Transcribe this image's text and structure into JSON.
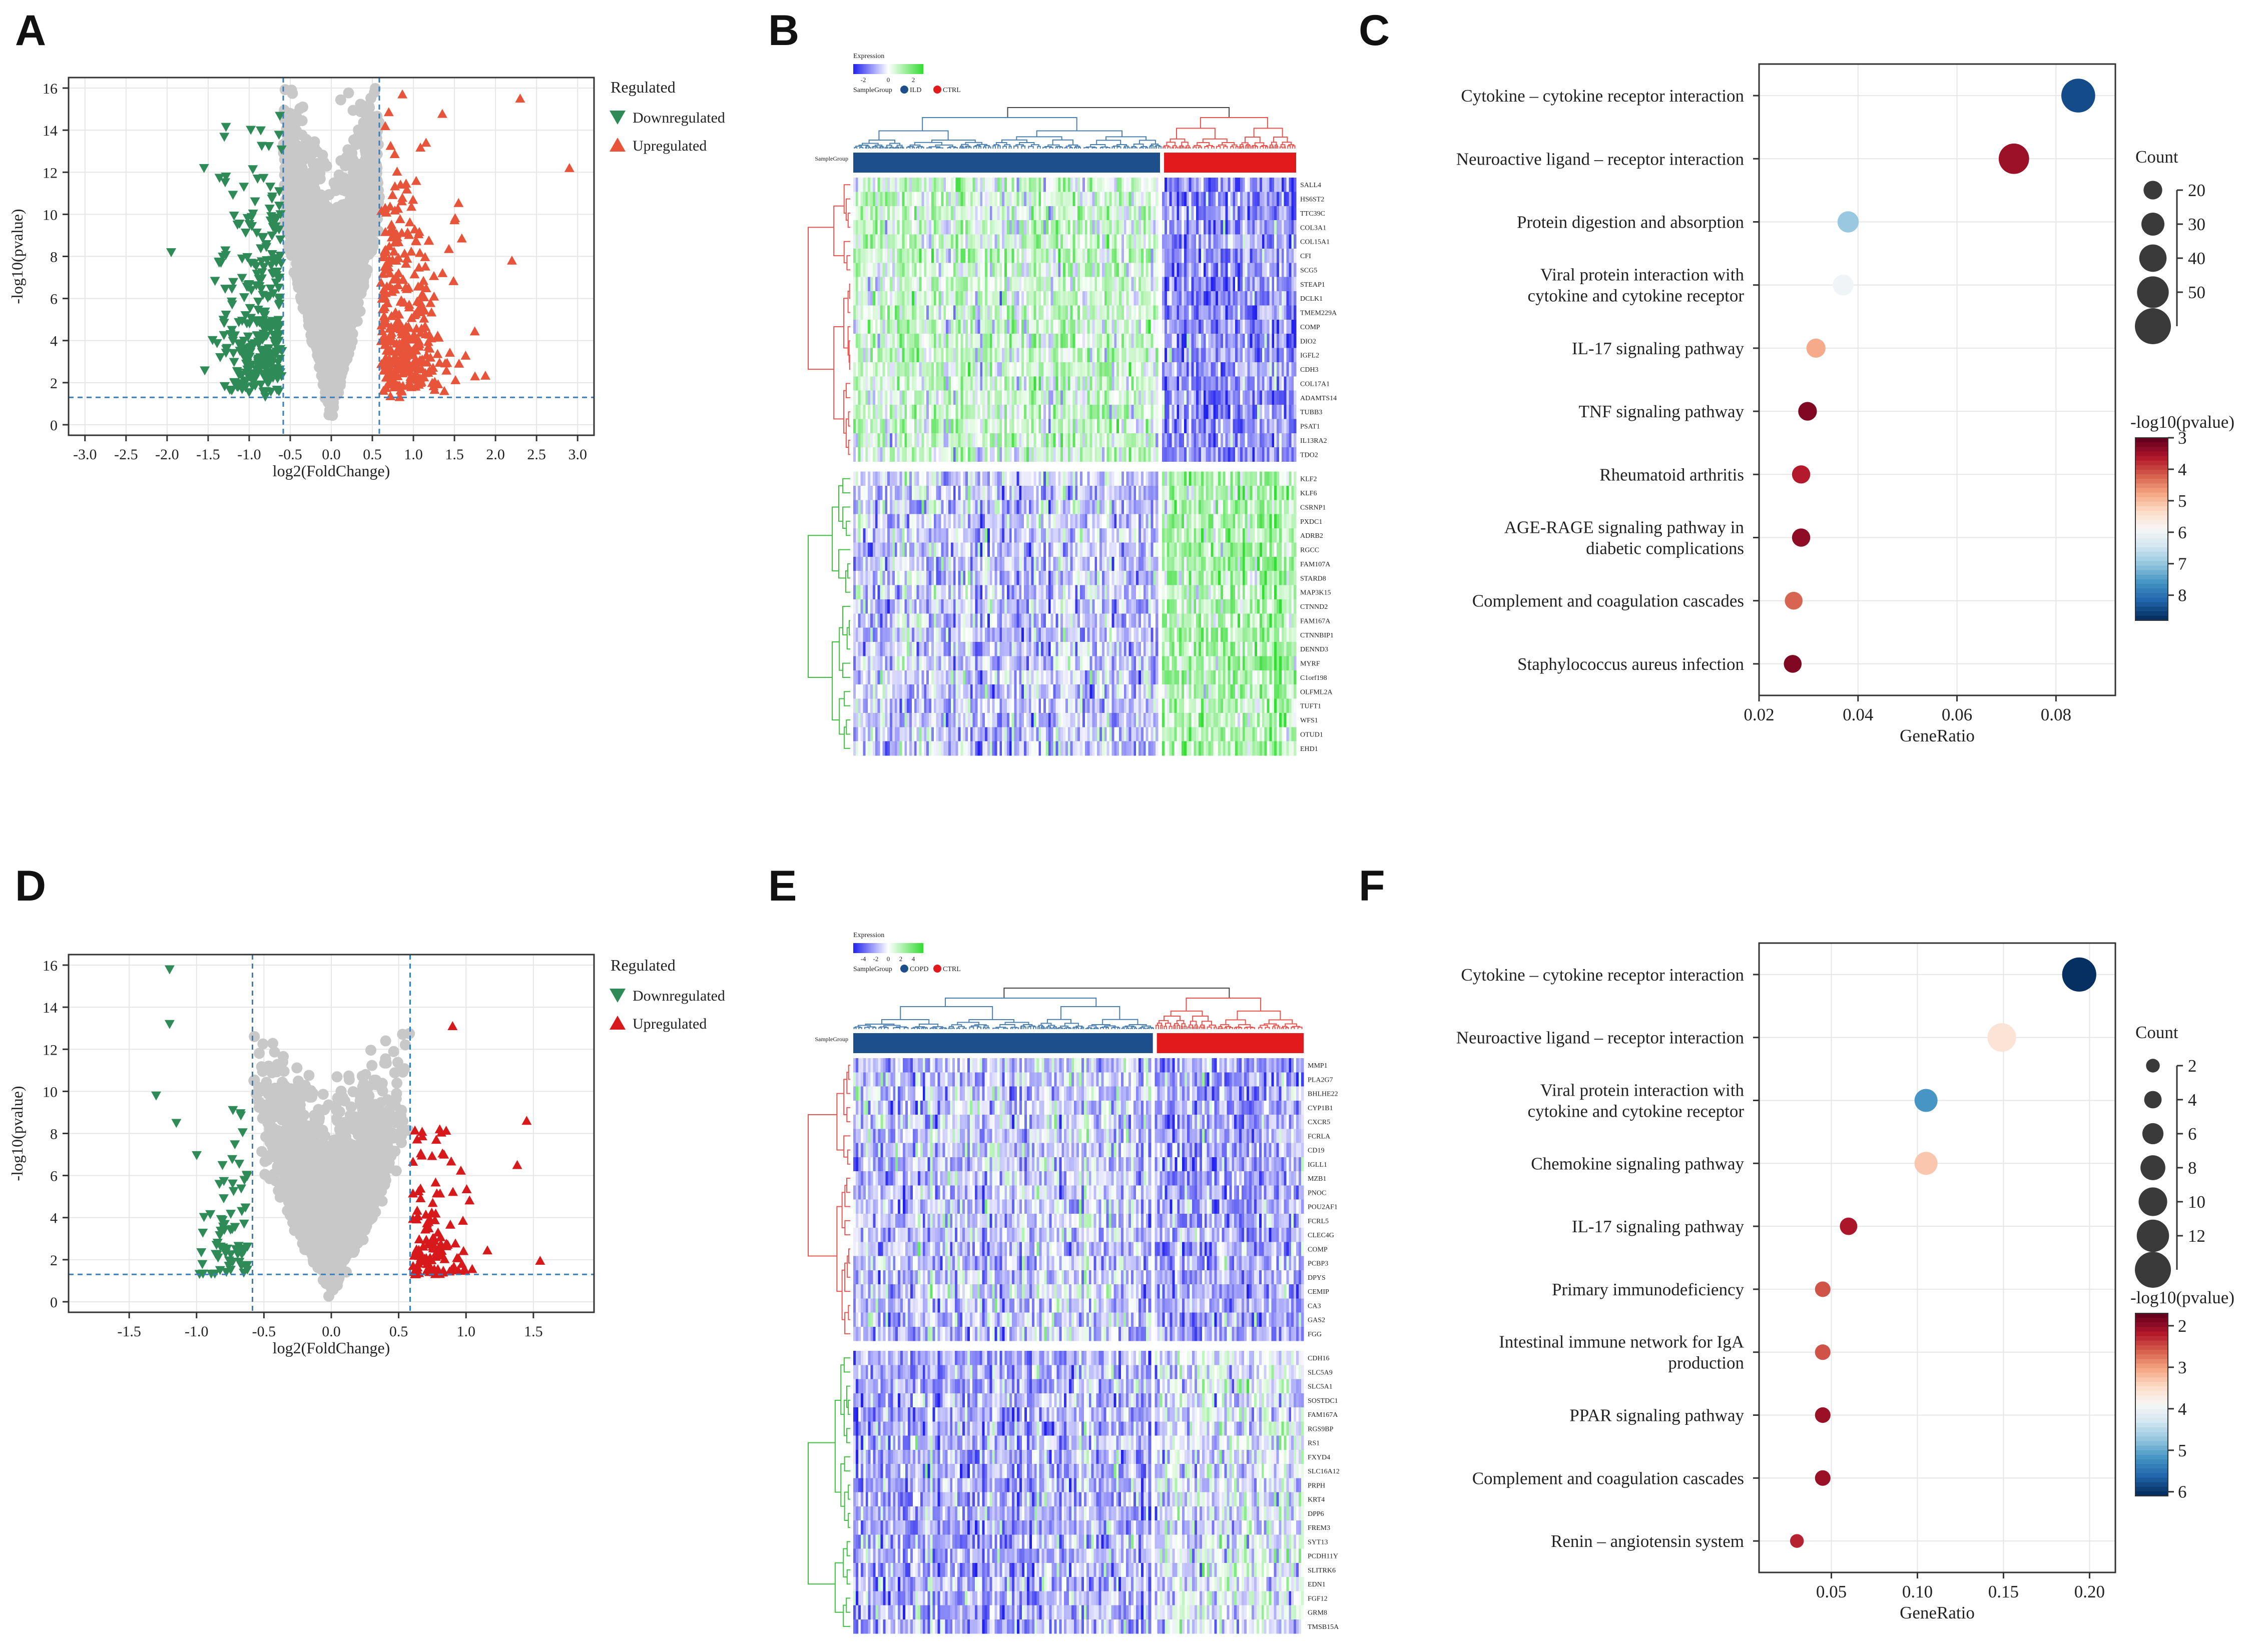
{
  "colors": {
    "down": "#2e8b57",
    "up": "#e8543a",
    "up_e": "#d7191c",
    "ns": "#c8c8c8",
    "threshold": "#3a7fb8",
    "ild": "#1c4f8c",
    "ctrl": "#e31a1c",
    "heat_low": "#2222ee",
    "heat_mid": "#ffffff",
    "heat_high": "#33dd33",
    "dend_up": "#e8544f",
    "dend_down": "#3fbf3f"
  },
  "panels": [
    {
      "id": "A",
      "label": "A"
    },
    {
      "id": "B",
      "label": "B"
    },
    {
      "id": "C",
      "label": "C"
    },
    {
      "id": "D",
      "label": "D"
    },
    {
      "id": "E",
      "label": "E"
    },
    {
      "id": "F",
      "label": "F"
    }
  ],
  "chart_data": [
    {
      "panel": "A",
      "type": "scatter",
      "xlabel": "log2(FoldChange)",
      "ylabel": "-log10(pvalue)",
      "xlim": [
        -3.2,
        3.2
      ],
      "ylim": [
        -0.5,
        16.5
      ],
      "xticks": [
        -3.0,
        -2.5,
        -2.0,
        -1.5,
        -1.0,
        -0.5,
        0.0,
        0.5,
        1.0,
        1.5,
        2.0,
        2.5,
        3.0
      ],
      "xtick_labels": [
        "-3.0",
        "-2.5",
        "-2.0",
        "-1.5",
        "-1.0",
        "-0.5",
        "0.0",
        "0.5",
        "1.0",
        "1.5",
        "2.0",
        "2.5",
        "3.0"
      ],
      "yticks": [
        0,
        2,
        4,
        6,
        8,
        10,
        12,
        14,
        16
      ],
      "ytick_labels": [
        "0",
        "2",
        "4",
        "6",
        "8",
        "10",
        "12",
        "14",
        "16"
      ],
      "fc_threshold": [
        -0.585,
        0.585
      ],
      "p_threshold": 1.3,
      "legend": {
        "title": "Regulated",
        "items": [
          {
            "name": "Downregulated",
            "marker": "down-triangle"
          },
          {
            "name": "Upregulated",
            "marker": "up-triangle"
          }
        ]
      },
      "x_spread": 0.75,
      "ns_cap": 16.0,
      "n_ns": 2800,
      "n_down": 300,
      "n_up": 340,
      "up_max_x": 2.3,
      "outliers": [
        [
          -1.95,
          8.2
        ],
        [
          -1.55,
          12.2
        ],
        [
          -0.6,
          3.5
        ],
        [
          2.9,
          12.2
        ],
        [
          2.3,
          15.5
        ],
        [
          2.2,
          7.8
        ],
        [
          1.75,
          2.3
        ]
      ]
    },
    {
      "panel": "B",
      "type": "heatmap",
      "legend_title": "Expression",
      "legend_ticks": [
        "-2",
        "0",
        "2"
      ],
      "group_label": "SampleGroup",
      "groups": [
        "ILD",
        "CTRL"
      ],
      "group_sizes": [
        250,
        110
      ],
      "rows_up": [
        "SALL4",
        "HS6ST2",
        "TTC39C",
        "COL3A1",
        "COL15A1",
        "CFI",
        "SCG5",
        "STEAP1",
        "DCLK1",
        "TMEM229A",
        "COMP",
        "DIO2",
        "IGFL2",
        "CDH3",
        "COL17A1",
        "ADAMTS14",
        "TUBB3",
        "PSAT1",
        "IL13RA2",
        "TDO2"
      ],
      "rows_down": [
        "KLF2",
        "KLF6",
        "CSRNP1",
        "PXDC1",
        "ADRB2",
        "RGCC",
        "FAM107A",
        "STARD8",
        "MAP3K15",
        "CTNND2",
        "FAM167A",
        "CTNNBIP1",
        "DENND3",
        "MYRF",
        "C1orf198",
        "OLFML2A",
        "TUFT1",
        "WFS1",
        "OTUD1",
        "EHD1"
      ]
    },
    {
      "panel": "C",
      "type": "scatter",
      "xlabel": "GeneRatio",
      "xlim": [
        0.02,
        0.092
      ],
      "xticks": [
        0.02,
        0.04,
        0.06,
        0.08
      ],
      "xtick_labels": [
        "0.02",
        "0.04",
        "0.06",
        "0.08"
      ],
      "terms": [
        "Cytokine – cytokine receptor interaction",
        "Neuroactive ligand – receptor interaction",
        "Protein digestion and absorption",
        "Viral protein interaction with\ncytokine and cytokine receptor",
        "IL-17 signaling pathway",
        "TNF signaling pathway",
        "Rheumatoid arthritis",
        "AGE-RAGE signaling pathway in\ndiabetic complications",
        "Complement and coagulation cascades",
        "Staphylococcus aureus infection"
      ],
      "gene_ratio": [
        0.0845,
        0.0715,
        0.038,
        0.037,
        0.0315,
        0.0298,
        0.0285,
        0.0285,
        0.027,
        0.0268
      ],
      "count": [
        55,
        47,
        26,
        25,
        21,
        20,
        19,
        19,
        18,
        18
      ],
      "neg_log10_p": [
        8.5,
        3.4,
        7.0,
        6.0,
        4.8,
        3.2,
        3.6,
        3.3,
        4.2,
        3.2
      ],
      "size_legend": {
        "title": "Count",
        "values": [
          20,
          30,
          40,
          50
        ],
        "labels": [
          "20",
          "30",
          "40",
          "50"
        ],
        "extra": 60
      },
      "color_legend": {
        "title": "-log10(pvalue)",
        "min": 3,
        "max": 8.8,
        "ticks": [
          3,
          4,
          5,
          6,
          7,
          8
        ],
        "tick_labels": [
          "3",
          "4",
          "5",
          "6",
          "7",
          "8"
        ]
      }
    },
    {
      "panel": "D",
      "type": "scatter",
      "xlabel": "log2(FoldChange)",
      "ylabel": "-log10(pvalue)",
      "xlim": [
        -1.95,
        1.95
      ],
      "ylim": [
        -0.5,
        16.5
      ],
      "xticks": [
        -1.5,
        -1.0,
        -0.5,
        0.0,
        0.5,
        1.0,
        1.5
      ],
      "xtick_labels": [
        "-1.5",
        "-1.0",
        "-0.5",
        "0.0",
        "0.5",
        "1.0",
        "1.5"
      ],
      "yticks": [
        0,
        2,
        4,
        6,
        8,
        10,
        12,
        14,
        16
      ],
      "ytick_labels": [
        "0",
        "2",
        "4",
        "6",
        "8",
        "10",
        "12",
        "14",
        "16"
      ],
      "fc_threshold": [
        -0.585,
        0.585
      ],
      "p_threshold": 1.3,
      "legend": {
        "title": "Regulated",
        "items": [
          {
            "name": "Downregulated",
            "marker": "down-triangle"
          },
          {
            "name": "Upregulated",
            "marker": "up-triangle"
          }
        ]
      },
      "x_spread": 0.5,
      "ns_cap": 12.8,
      "n_ns": 2800,
      "n_down": 70,
      "n_up": 120,
      "up_max_x": 1.3,
      "outliers": [
        [
          -1.2,
          15.8
        ],
        [
          -1.2,
          13.2
        ],
        [
          -1.3,
          9.8
        ],
        [
          -1.15,
          8.5
        ],
        [
          0.9,
          13.1
        ],
        [
          1.55,
          1.95
        ],
        [
          1.45,
          8.6
        ],
        [
          1.38,
          6.5
        ]
      ]
    },
    {
      "panel": "E",
      "type": "heatmap",
      "legend_title": "Expression",
      "legend_ticks": [
        "-4",
        "-2",
        "0",
        "2",
        "4"
      ],
      "group_label": "SampleGroup",
      "groups": [
        "COPD",
        "CTRL"
      ],
      "group_sizes": [
        220,
        110
      ],
      "rows_up": [
        "MMP1",
        "PLA2G7",
        "BHLHE22",
        "CYP1B1",
        "CXCR5",
        "FCRLA",
        "CD19",
        "IGLL1",
        "MZB1",
        "PNOC",
        "POU2AF1",
        "FCRL5",
        "CLEC4G",
        "COMP",
        "PCBP3",
        "DPYS",
        "CEMIP",
        "CA3",
        "GAS2",
        "FGG"
      ],
      "rows_down": [
        "CDH16",
        "SLC5A9",
        "SLC5A1",
        "SOSTDC1",
        "FAM167A",
        "RGS9BP",
        "RS1",
        "FXYD4",
        "SLC16A12",
        "PRPH",
        "KRT4",
        "DPP6",
        "FREM3",
        "SYT13",
        "PCDH11Y",
        "SLITRK6",
        "EDN1",
        "FGF12",
        "GRM8",
        "TMSB15A"
      ]
    },
    {
      "panel": "F",
      "type": "scatter",
      "xlabel": "GeneRatio",
      "xlim": [
        0.008,
        0.215
      ],
      "xticks": [
        0.05,
        0.1,
        0.15,
        0.2
      ],
      "xtick_labels": [
        "0.05",
        "0.10",
        "0.15",
        "0.20"
      ],
      "terms": [
        "Cytokine – cytokine receptor interaction",
        "Neuroactive ligand – receptor interaction",
        "Viral protein interaction with\ncytokine and cytokine receptor",
        "Chemokine signaling pathway",
        "IL-17 signaling pathway",
        "Primary immunodeficiency",
        "Intestinal immune network for IgA\nproduction",
        "PPAR signaling pathway",
        "Complement and coagulation cascades",
        "Renin – angiotensin system"
      ],
      "gene_ratio": [
        0.194,
        0.149,
        0.105,
        0.105,
        0.06,
        0.045,
        0.045,
        0.045,
        0.045,
        0.03
      ],
      "count": [
        13,
        10,
        7,
        7,
        4,
        3,
        3,
        3,
        3,
        2
      ],
      "neg_log10_p": [
        6.1,
        3.6,
        5.2,
        3.3,
        2.1,
        2.5,
        2.5,
        2.0,
        2.0,
        2.2
      ],
      "size_legend": {
        "title": "Count",
        "values": [
          2,
          4,
          6,
          8,
          10,
          12
        ],
        "labels": [
          "2",
          "4",
          "6",
          "8",
          "10",
          "12"
        ],
        "extra": 14
      },
      "color_legend": {
        "title": "-log10(pvalue)",
        "min": 1.7,
        "max": 6.1,
        "ticks": [
          2,
          3,
          4,
          5,
          6
        ],
        "tick_labels": [
          "2",
          "3",
          "4",
          "5",
          "6"
        ]
      }
    }
  ]
}
